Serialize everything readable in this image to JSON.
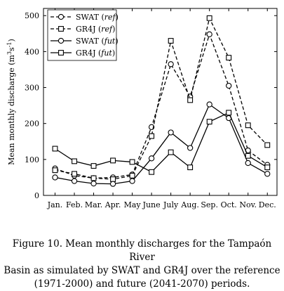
{
  "chart_data": {
    "type": "line",
    "categories": [
      "Jan.",
      "Feb.",
      "Mar.",
      "Apr.",
      "May",
      "June",
      "July",
      "Aug.",
      "Sep.",
      "Oct.",
      "Nov.",
      "Dec."
    ],
    "ylabel_main": "Mean monthly discharge (m",
    "ylabel_sup": "3",
    "ylabel_mid": "s",
    "ylabel_sup2": "-1",
    "ylabel_end": ")",
    "xlabel": "",
    "ylim": [
      0,
      520
    ],
    "yticks": [
      0,
      100,
      200,
      300,
      400,
      500
    ],
    "grid": false,
    "legend_position": "top-left",
    "series": [
      {
        "name": "SWAT",
        "period": "ref",
        "marker": "circle",
        "dashed": true,
        "values": [
          75,
          55,
          48,
          50,
          58,
          190,
          365,
          275,
          448,
          305,
          125,
          85
        ]
      },
      {
        "name": "GR4J",
        "period": "ref",
        "marker": "square",
        "dashed": true,
        "values": [
          70,
          60,
          48,
          45,
          55,
          165,
          430,
          265,
          493,
          383,
          195,
          140
        ]
      },
      {
        "name": "SWAT",
        "period": "fut",
        "marker": "circle",
        "dashed": false,
        "values": [
          50,
          40,
          33,
          32,
          40,
          103,
          175,
          132,
          253,
          215,
          90,
          60
        ]
      },
      {
        "name": "GR4J",
        "period": "fut",
        "marker": "square",
        "dashed": false,
        "values": [
          130,
          95,
          82,
          97,
          93,
          65,
          120,
          78,
          205,
          230,
          110,
          78
        ]
      }
    ]
  },
  "caption": {
    "line1": "Figure 10. Mean monthly discharges for the Tampaón River",
    "line2": "Basin as simulated by SWAT and GR4J over the reference",
    "line3": "(1971-2000) and future (2041-2070) periods."
  }
}
